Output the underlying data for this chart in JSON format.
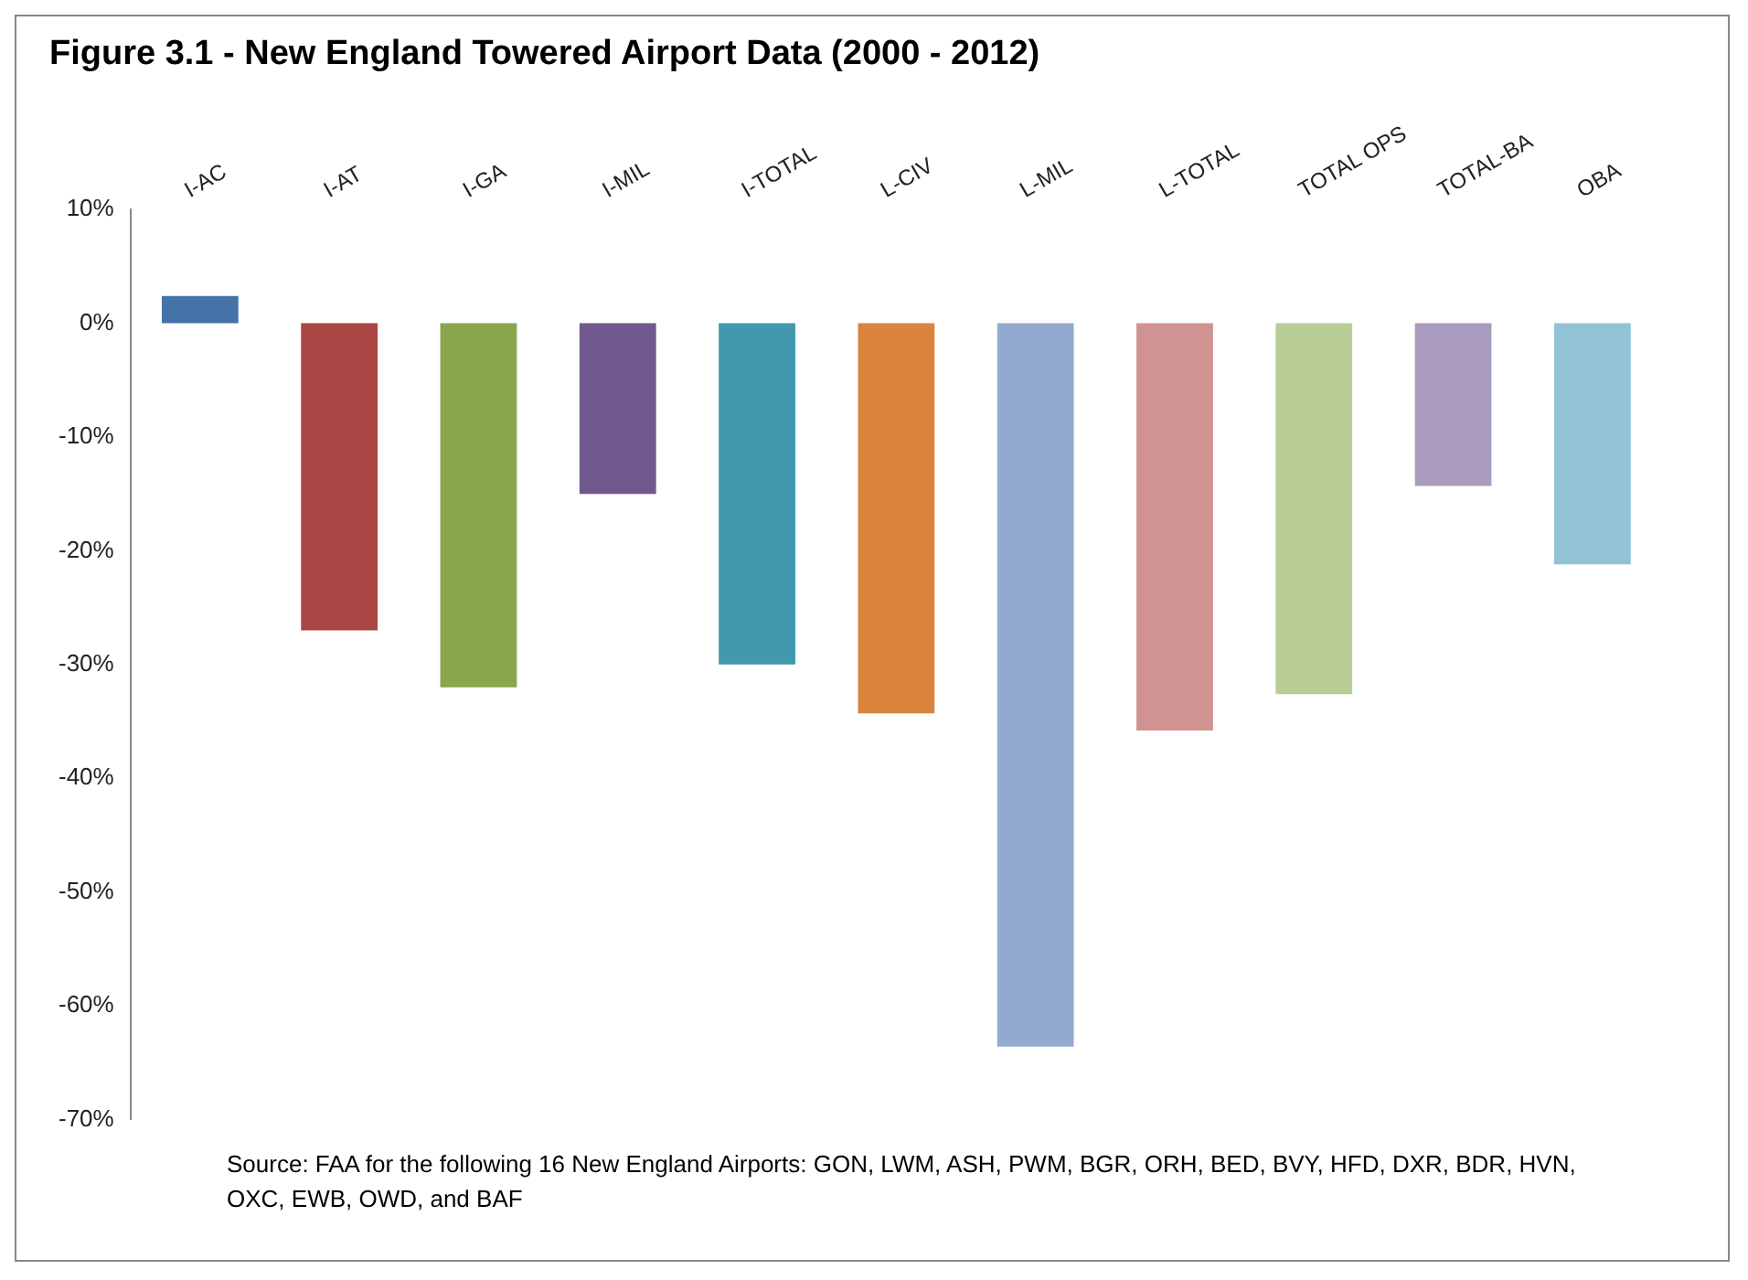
{
  "chart_data": {
    "type": "bar",
    "title": "Figure 3.1 - New England Towered Airport Data (2000 - 2012)",
    "categories": [
      "I-AC",
      "I-AT",
      "I-GA",
      "I-MIL",
      "I-TOTAL",
      "L-CIV",
      "L-MIL",
      "L-TOTAL",
      "TOTAL OPS",
      "TOTAL-BA",
      "OBA"
    ],
    "values": [
      2.4,
      -27,
      -32,
      -15,
      -30,
      -34.3,
      -63.6,
      -35.8,
      -32.6,
      -14.3,
      -21.2
    ],
    "colors": [
      "#4573a7",
      "#aa4644",
      "#89a54e",
      "#71588f",
      "#4198af",
      "#db843d",
      "#93a9cf",
      "#d19392",
      "#b9cd96",
      "#a99bbd",
      "#91c3d5"
    ],
    "ylim": [
      -70,
      10
    ],
    "yticks": [
      {
        "value": 10,
        "label": "10%"
      },
      {
        "value": 0,
        "label": "0%"
      },
      {
        "value": -10,
        "label": "-10%"
      },
      {
        "value": -20,
        "label": "-20%"
      },
      {
        "value": -30,
        "label": "-30%"
      },
      {
        "value": -40,
        "label": "-40%"
      },
      {
        "value": -50,
        "label": "-50%"
      },
      {
        "value": -60,
        "label": "-60%"
      },
      {
        "value": -70,
        "label": "-70%"
      }
    ],
    "grid": false,
    "legend": false,
    "annotations": [
      "Source: FAA for the following 16 New England Airports: GON, LWM, ASH, PWM, BGR, ORH, BED, BVY, HFD, DXR, BDR, HVN, OXC, EWB, OWD, and BAF"
    ]
  }
}
